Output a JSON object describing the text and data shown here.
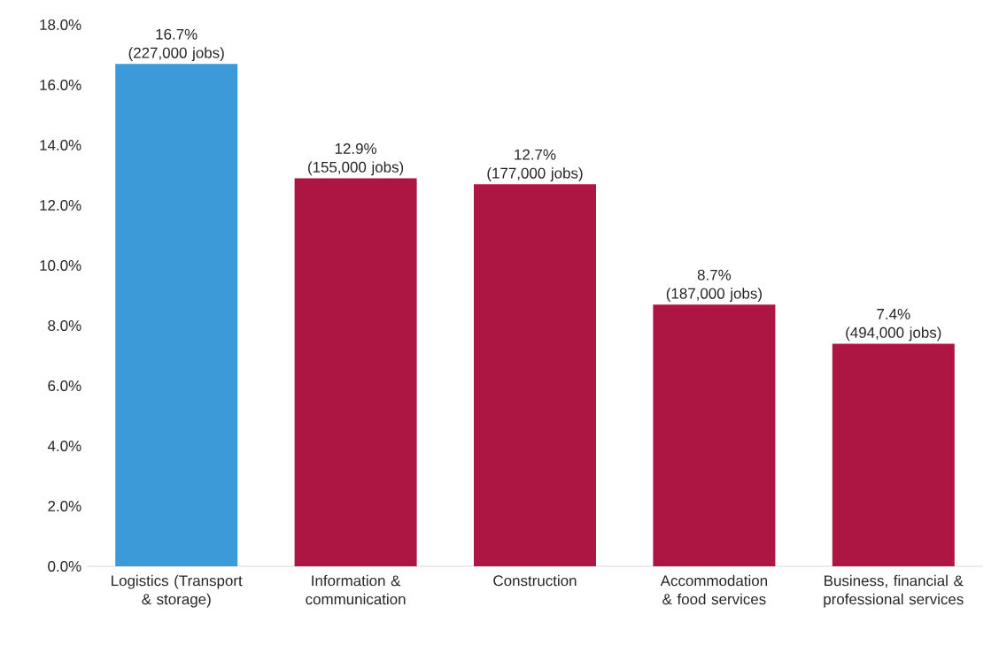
{
  "chart_data": {
    "type": "bar",
    "categories": [
      "Logistics (Transport & storage)",
      "Information & communication",
      "Construction",
      "Accommodation & food services",
      "Business, financial & professional services"
    ],
    "values": [
      16.7,
      12.9,
      12.7,
      8.7,
      7.4
    ],
    "colors": [
      "#3d9ad8",
      "#ad1642",
      "#ad1642",
      "#ad1642",
      "#ad1642"
    ],
    "value_labels": [
      "16.7%\n(227,000 jobs)",
      "12.9%\n(155,000 jobs)",
      "12.7%\n(177,000 jobs)",
      "8.7%\n(187,000 jobs)",
      "7.4%\n(494,000 jobs)"
    ],
    "ylim": [
      0,
      18
    ],
    "yticks": [
      {
        "value": 0,
        "label": "0.0%"
      },
      {
        "value": 2,
        "label": "2.0%"
      },
      {
        "value": 4,
        "label": "4.0%"
      },
      {
        "value": 6,
        "label": "6.0%"
      },
      {
        "value": 8,
        "label": "8.0%"
      },
      {
        "value": 10,
        "label": "10.0%"
      },
      {
        "value": 12,
        "label": "12.0%"
      },
      {
        "value": 14,
        "label": "14.0%"
      },
      {
        "value": 16,
        "label": "16.0%"
      },
      {
        "value": 18,
        "label": "18.0%"
      }
    ]
  }
}
